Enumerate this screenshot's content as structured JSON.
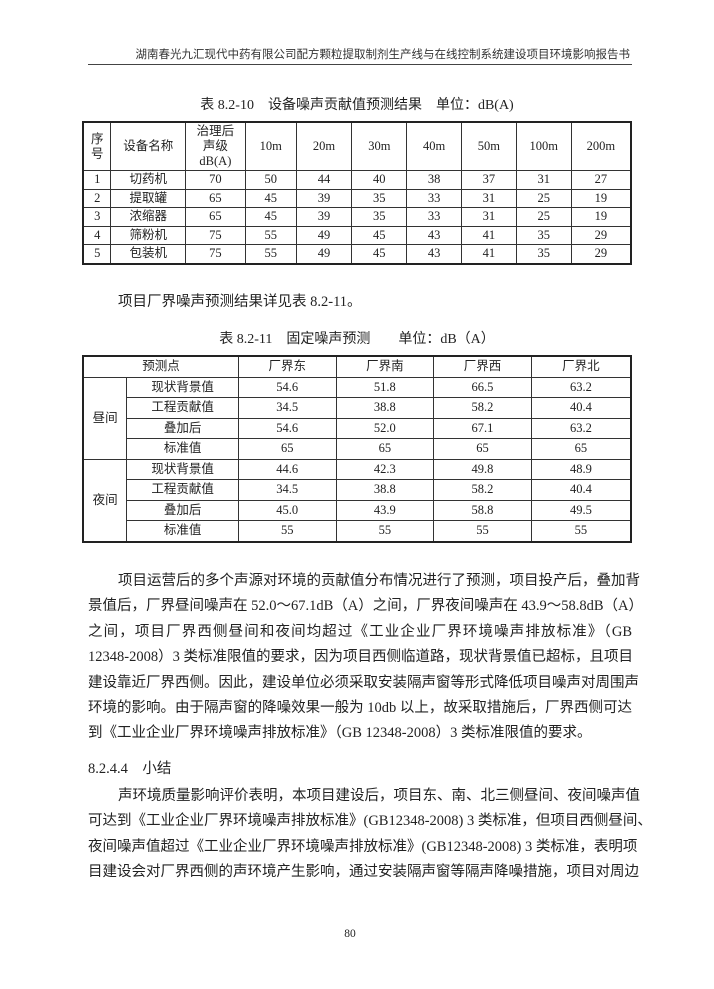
{
  "header": "湖南春光九汇现代中药有限公司配方颗粒提取制剂生产线与在线控制系统建设项目环境影响报告书",
  "table1": {
    "caption": "表 8.2-10　设备噪声贡献值预测结果　单位：dB(A)",
    "headers": [
      "序\n号",
      "设备名称",
      "治理后\n声级\ndB(A)",
      "10m",
      "20m",
      "30m",
      "40m",
      "50m",
      "100m",
      "200m"
    ],
    "rows": [
      [
        "1",
        "切药机",
        "70",
        "50",
        "44",
        "40",
        "38",
        "37",
        "31",
        "27"
      ],
      [
        "2",
        "提取罐",
        "65",
        "45",
        "39",
        "35",
        "33",
        "31",
        "25",
        "19"
      ],
      [
        "3",
        "浓缩器",
        "65",
        "45",
        "39",
        "35",
        "33",
        "31",
        "25",
        "19"
      ],
      [
        "4",
        "筛粉机",
        "75",
        "55",
        "49",
        "45",
        "43",
        "41",
        "35",
        "29"
      ],
      [
        "5",
        "包装机",
        "75",
        "55",
        "49",
        "45",
        "43",
        "41",
        "35",
        "29"
      ]
    ]
  },
  "intro": "项目厂界噪声预测结果详见表 8.2-11。",
  "table2": {
    "caption": "表 8.2-11　固定噪声预测　　单位：dB（A）",
    "headers": [
      "预测点",
      "厂界东",
      "厂界南",
      "厂界西",
      "厂界北"
    ],
    "groups": [
      {
        "label": "昼间",
        "rows": [
          [
            "现状背景值",
            "54.6",
            "51.8",
            "66.5",
            "63.2"
          ],
          [
            "工程贡献值",
            "34.5",
            "38.8",
            "58.2",
            "40.4"
          ],
          [
            "叠加后",
            "54.6",
            "52.0",
            "67.1",
            "63.2"
          ],
          [
            "标准值",
            "65",
            "65",
            "65",
            "65"
          ]
        ]
      },
      {
        "label": "夜间",
        "rows": [
          [
            "现状背景值",
            "44.6",
            "42.3",
            "49.8",
            "48.9"
          ],
          [
            "工程贡献值",
            "34.5",
            "38.8",
            "58.2",
            "40.4"
          ],
          [
            "叠加后",
            "45.0",
            "43.9",
            "58.8",
            "49.5"
          ],
          [
            "标准值",
            "55",
            "55",
            "55",
            "55"
          ]
        ]
      }
    ]
  },
  "para1": [
    "项目运营后的多个声源对环境的贡献值分布情况进行了预测，项目投产后，叠加背",
    "景值后，厂界昼间噪声在 52.0～67.1dB（A）之间，厂界夜间噪声在 43.9～58.8dB（A）",
    "之间，项目厂界西侧昼间和夜间均超过《工业企业厂界环境噪声排放标准》（GB",
    "12348-2008）3 类标准限值的要求，因为项目西侧临道路，现状背景值已超标，且项目",
    "建设靠近厂界西侧。因此，建设单位必须采取安装隔声窗等形式降低项目噪声对周围声",
    "环境的影响。由于隔声窗的降噪效果一般为 10db 以上，故采取措施后，厂界西侧可达",
    "到《工业企业厂界环境噪声排放标准》（GB 12348-2008）3 类标准限值的要求。"
  ],
  "section": "8.2.4.4　小结",
  "para2": [
    "声环境质量影响评价表明，本项目建设后，项目东、南、北三侧昼间、夜间噪声值",
    "可达到《工业企业厂界环境噪声排放标准》(GB12348-2008) 3 类标准，但项目西侧昼间、",
    "夜间噪声值超过《工业企业厂界环境噪声排放标准》(GB12348-2008) 3 类标准，表明项",
    "目建设会对厂界西侧的声环境产生影响，通过安装隔声窗等隔声降噪措施，项目对周边"
  ],
  "page_number": "80"
}
